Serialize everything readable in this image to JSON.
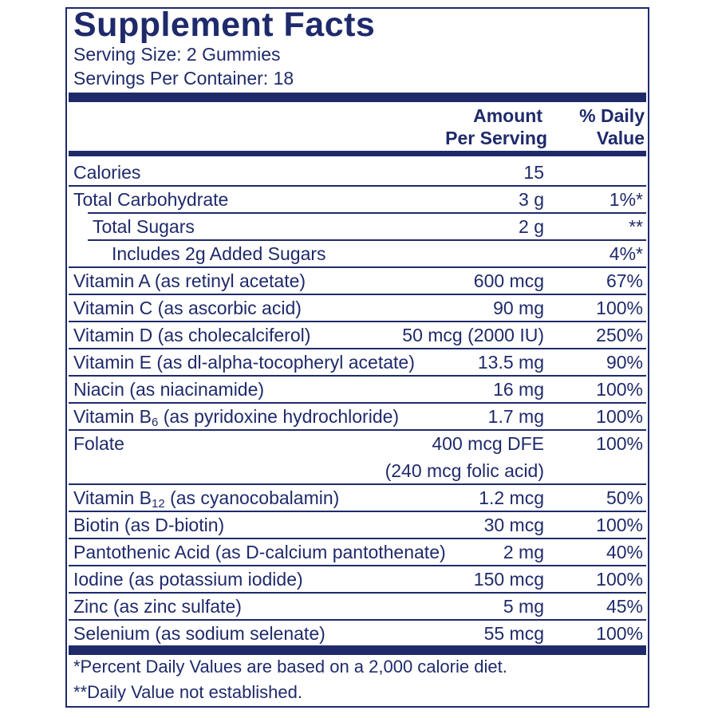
{
  "title": "Supplement Facts",
  "serving_size": "Serving Size: 2 Gummies",
  "servings_per_container": "Servings Per Container: 18",
  "header": {
    "amount_line1": "Amount",
    "amount_line2": "Per Serving",
    "dv_line1": "% Daily",
    "dv_line2": "Value"
  },
  "rows": [
    {
      "name": "Calories",
      "amount": "15",
      "dv": ""
    },
    {
      "name": "Total Carbohydrate",
      "amount": "3 g",
      "dv": "1%*"
    },
    {
      "name": "Total Sugars",
      "amount": "2 g",
      "dv": "**"
    },
    {
      "name": "Includes 2g Added Sugars",
      "amount": "",
      "dv": "4%*"
    },
    {
      "name": "Vitamin A (as retinyl acetate)",
      "amount": "600 mcg",
      "dv": "67%"
    },
    {
      "name": "Vitamin C (as ascorbic acid)",
      "amount": "90 mg",
      "dv": "100%"
    },
    {
      "name": "Vitamin D (as cholecalciferol)",
      "amount": "50 mcg (2000 IU)",
      "dv": "250%"
    },
    {
      "name": "Vitamin E (as dl-alpha-tocopheryl acetate)",
      "amount": "13.5 mg",
      "dv": "90%"
    },
    {
      "name": "Niacin (as niacinamide)",
      "amount": "16 mg",
      "dv": "100%"
    },
    {
      "name_pre": "Vitamin B",
      "name_sub": "6",
      "name_post": " (as pyridoxine hydrochloride)",
      "amount": "1.7 mg",
      "dv": "100%"
    },
    {
      "name": "Folate",
      "amount": "400 mcg DFE",
      "amount2": "(240 mcg folic acid)",
      "dv": "100%"
    },
    {
      "name_pre": "Vitamin B",
      "name_sub": "12",
      "name_post": " (as cyanocobalamin)",
      "amount": "1.2 mcg",
      "dv": "50%"
    },
    {
      "name": "Biotin (as D-biotin)",
      "amount": "30 mcg",
      "dv": "100%"
    },
    {
      "name": "Pantothenic Acid (as D-calcium pantothenate)",
      "amount": "2 mg",
      "dv": "40%"
    },
    {
      "name": "Iodine (as potassium iodide)",
      "amount": "150 mcg",
      "dv": "100%"
    },
    {
      "name": "Zinc (as zinc sulfate)",
      "amount": "5 mg",
      "dv": "45%"
    },
    {
      "name": "Selenium (as sodium selenate)",
      "amount": "55 mcg",
      "dv": "100%"
    }
  ],
  "footnotes": {
    "note1": "*Percent Daily Values are based on a 2,000 calorie diet.",
    "note2": "**Daily Value not established."
  },
  "colors": {
    "ink": "#1f2a6b",
    "background": "#ffffff"
  }
}
